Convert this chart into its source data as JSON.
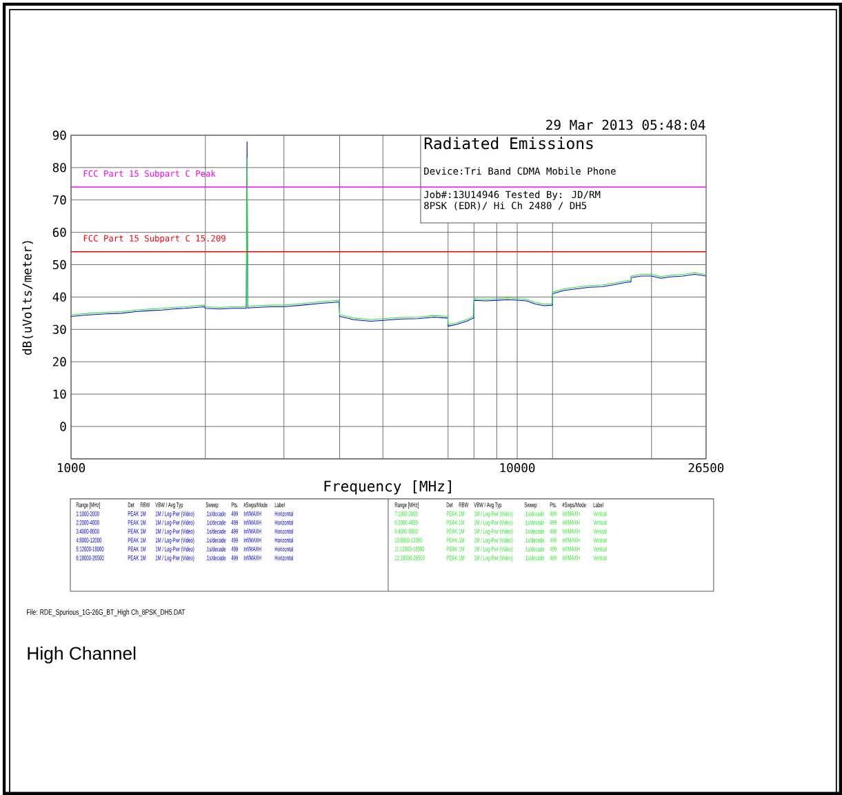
{
  "chart_data": {
    "type": "line",
    "title": "Radiated Emissions",
    "xlabel": "Frequency [MHz]",
    "ylabel": "dB(uVolts/meter)",
    "log": "x",
    "grid": true,
    "line_style": "solid",
    "xlim": [
      1000,
      26500
    ],
    "ylim": [
      -10,
      90
    ],
    "xticks": [
      1000,
      {
        "value": 2000,
        "label": null
      },
      {
        "value": 3000,
        "label": null
      },
      {
        "value": 4000,
        "label": null
      },
      {
        "value": 5000,
        "label": null
      },
      {
        "value": 7000,
        "label": null
      },
      {
        "value": 8000,
        "label": null
      },
      {
        "value": 9000,
        "label": null
      },
      10000,
      {
        "value": 12000,
        "label": null
      },
      {
        "value": 20000,
        "label": null
      },
      26500
    ],
    "yticks": [
      {
        "value": -10,
        "label": null
      },
      0,
      10,
      20,
      30,
      40,
      50,
      60,
      70,
      80,
      90
    ],
    "x": [
      1000,
      1100,
      1200,
      1300,
      1400,
      1500,
      1600,
      1700,
      1800,
      1900,
      1990,
      2000,
      2150,
      2300,
      2470,
      2480,
      2490,
      2600,
      2800,
      3000,
      3300,
      3600,
      3990,
      4000,
      4300,
      4700,
      5000,
      5500,
      6000,
      6500,
      6990,
      7000,
      7300,
      7700,
      7990,
      8000,
      8500,
      9000,
      9500,
      10000,
      10500,
      11000,
      11500,
      11990,
      12000,
      12700,
      13500,
      14500,
      15500,
      16500,
      17500,
      17990,
      18000,
      19000,
      20000,
      21000,
      22000,
      23500,
      25000,
      26500
    ],
    "series": [
      {
        "color": "#0000ff",
        "values": [
          34,
          34.5,
          34.8,
          35,
          35.5,
          35.8,
          36,
          36.3,
          36.5,
          36.8,
          37,
          36.5,
          36.3,
          36.5,
          36.5,
          88,
          36.6,
          36.8,
          37,
          37,
          37.5,
          38,
          38.5,
          34,
          33,
          32.5,
          32.8,
          33.2,
          33.3,
          33.8,
          33.5,
          31,
          31.5,
          32.5,
          33.5,
          39,
          38.8,
          39,
          39.2,
          39,
          38.8,
          37.8,
          37.3,
          37.5,
          41,
          42,
          42.5,
          43,
          43.2,
          43.8,
          44.5,
          44.7,
          46,
          46.5,
          46.5,
          45.8,
          46.2,
          46.5,
          47,
          46.5
        ]
      },
      {
        "color": "#22ee22",
        "values": [
          34.5,
          35,
          35.3,
          35.5,
          36,
          36.3,
          36.5,
          36.8,
          37,
          37.3,
          37.5,
          37,
          36.8,
          37,
          37,
          83,
          37.1,
          37.3,
          37.5,
          37.5,
          38,
          38.5,
          39,
          34.5,
          33.5,
          33,
          33.3,
          33.7,
          33.8,
          34.3,
          34,
          31.5,
          32,
          33,
          34,
          39.5,
          39.3,
          39.5,
          39.7,
          39.5,
          39.3,
          38.3,
          37.8,
          38,
          41.5,
          42.5,
          43,
          43.5,
          43.7,
          44.3,
          45,
          45.2,
          46.5,
          47,
          47,
          46.3,
          46.7,
          47,
          47.5,
          47
        ]
      }
    ],
    "ref_lines": [
      {
        "axis": "y",
        "value": 74,
        "label": "FCC Part 15 Subpart C Peak",
        "color": "#ff00ff"
      },
      {
        "axis": "y",
        "value": 54,
        "label": "FCC Part 15 Subpart C 15.209",
        "color": "#ff0000"
      }
    ],
    "annotations": [
      "29 Mar 2013   05:48:04",
      "Device:Tri Band CDMA Mobile Phone",
      "Job#:13U14946  Tested By: JD/RM",
      "8PSK (EDR)/ Hi Ch 2480 / DH5",
      "Range [MHz]",
      "Det",
      "RBW",
      "VBW / Avg Typ",
      "Sweep",
      "Pts.",
      "#Swps/Mode",
      "Label",
      "1:1000-2000",
      "PEAK",
      "1M",
      "1M / Log-Pwr (Video)",
      ".1s/decade",
      "499",
      "Inf/MAXH",
      "Horizontal",
      "2:2000-4000",
      "PEAK",
      "1M",
      "1M / Log-Pwr (Video)",
      ".1s/decade",
      "499",
      "Inf/MAXH",
      "Horizontal",
      "3:4000-8000",
      "PEAK",
      "1M",
      "1M / Log-Pwr (Video)",
      ".1s/decade",
      "499",
      "Inf/MAXH",
      "Horizontal",
      "4:8000-12000",
      "PEAK",
      "1M",
      "1M / Log-Pwr (Video)",
      ".1s/decade",
      "499",
      "Inf/MAXH",
      "Horizontal",
      "5:12000-18000",
      "PEAK",
      "1M",
      "1M / Log-Pwr (Video)",
      ".1s/decade",
      "499",
      "Inf/MAXH",
      "Horizontal",
      "6:18000-26500",
      "PEAK",
      "1M",
      "1M / Log-Pwr (Video)",
      ".1s/decade",
      "499",
      "Inf/MAXH",
      "Horizontal",
      "Range [MHz]",
      "Det",
      "RBW",
      "VBW / Avg Typ",
      "Sweep",
      "Pts.",
      "#Swps/Mode",
      "Label",
      "7:1000-2000",
      "PEAK",
      "1M",
      "1M / Log-Pwr (Video)",
      ".1s/decade",
      "499",
      "Inf/MAXH",
      "Vertical",
      "8:2000-4000",
      "PEAK",
      "1M",
      "1M / Log-Pwr (Video)",
      ".1s/decade",
      "499",
      "Inf/MAXH",
      "Vertical",
      "9:4000-8000",
      "PEAK",
      "1M",
      "1M / Log-Pwr (Video)",
      ".1s/decade",
      "499",
      "Inf/MAXH",
      "Vertical",
      "10:8000-12000",
      "PEAK",
      "1M",
      "1M / Log-Pwr (Video)",
      ".1s/decade",
      "499",
      "Inf/MAXH",
      "Vertical",
      "11:12000-18000",
      "PEAK",
      "1M",
      "1M / Log-Pwr (Video)",
      ".1s/decade",
      "499",
      "Inf/MAXH",
      "Vertical",
      "12:18000-26500",
      "PEAK",
      "1M",
      "1M / Log-Pwr (Video)",
      ".1s/decade",
      "499",
      "Inf/MAXH",
      "Vertical",
      "File: RDE_Spurious_1G-26G_BT_High Ch_8PSK_DH5.DAT",
      "High Channel"
    ]
  }
}
